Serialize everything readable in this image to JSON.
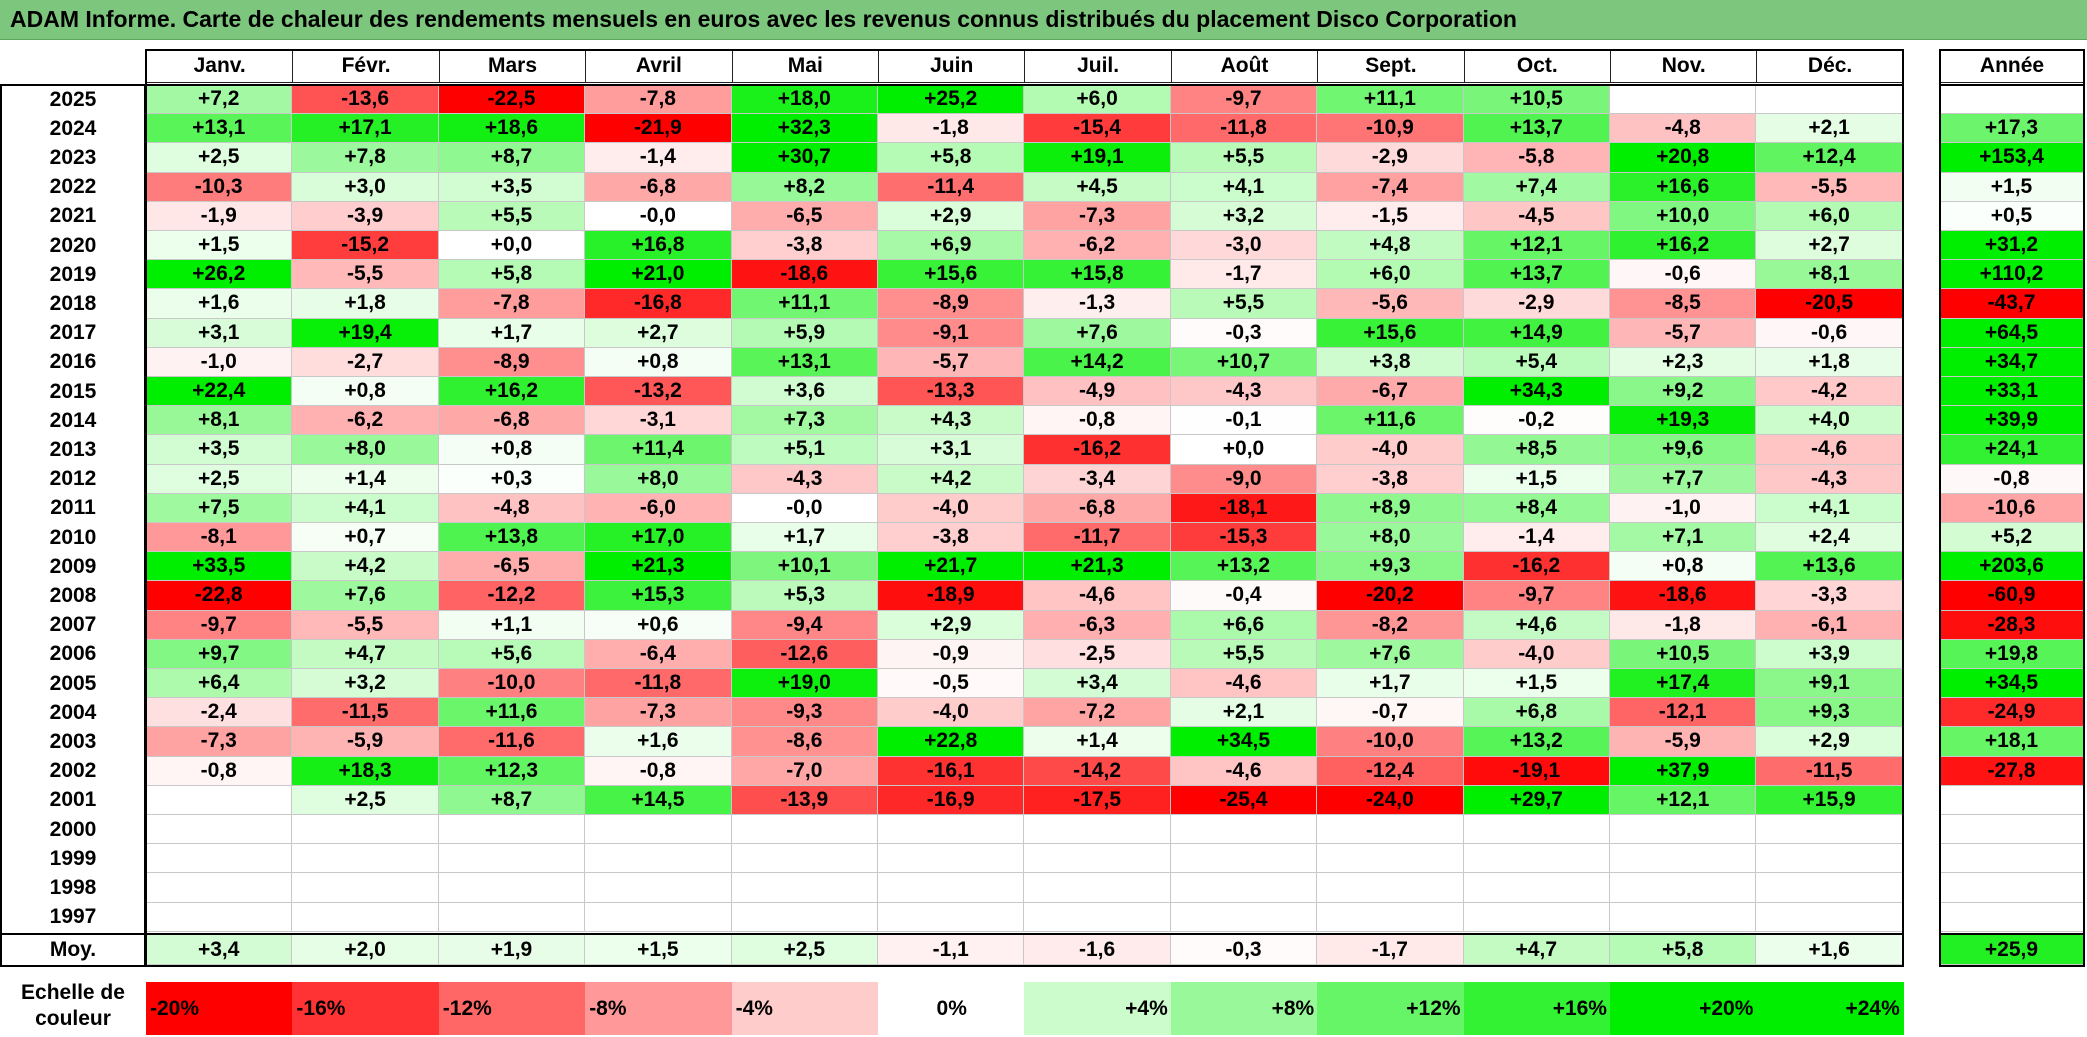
{
  "title": "ADAM Informe. Carte de chaleur des rendements mensuels en euros avec les revenus connus distribués du placement Disco Corporation",
  "colors": {
    "max_red": "#ff0000",
    "max_green": "#00ee00",
    "neutral": "#ffffff",
    "title_bg": "#7dc67d"
  },
  "chart_data": {
    "type": "heatmap",
    "title": "ADAM Informe. Carte de chaleur des rendements mensuels en euros avec les revenus connus distribués du placement Disco Corporation",
    "months": [
      "Janv.",
      "Févr.",
      "Mars",
      "Avril",
      "Mai",
      "Juin",
      "Juil.",
      "Août",
      "Sept.",
      "Oct.",
      "Nov.",
      "Déc."
    ],
    "year_header": "Année",
    "rows": [
      {
        "year": "2025",
        "values": [
          "+7,2",
          "-13,6",
          "-22,5",
          "-7,8",
          "+18,0",
          "+25,2",
          "+6,0",
          "-9,7",
          "+11,1",
          "+10,5",
          "",
          ""
        ],
        "annual": ""
      },
      {
        "year": "2024",
        "values": [
          "+13,1",
          "+17,1",
          "+18,6",
          "-21,9",
          "+32,3",
          "-1,8",
          "-15,4",
          "-11,8",
          "-10,9",
          "+13,7",
          "-4,8",
          "+2,1"
        ],
        "annual": "+17,3"
      },
      {
        "year": "2023",
        "values": [
          "+2,5",
          "+7,8",
          "+8,7",
          "-1,4",
          "+30,7",
          "+5,8",
          "+19,1",
          "+5,5",
          "-2,9",
          "-5,8",
          "+20,8",
          "+12,4"
        ],
        "annual": "+153,4"
      },
      {
        "year": "2022",
        "values": [
          "-10,3",
          "+3,0",
          "+3,5",
          "-6,8",
          "+8,2",
          "-11,4",
          "+4,5",
          "+4,1",
          "-7,4",
          "+7,4",
          "+16,6",
          "-5,5"
        ],
        "annual": "+1,5"
      },
      {
        "year": "2021",
        "values": [
          "-1,9",
          "-3,9",
          "+5,5",
          "-0,0",
          "-6,5",
          "+2,9",
          "-7,3",
          "+3,2",
          "-1,5",
          "-4,5",
          "+10,0",
          "+6,0"
        ],
        "annual": "+0,5"
      },
      {
        "year": "2020",
        "values": [
          "+1,5",
          "-15,2",
          "+0,0",
          "+16,8",
          "-3,8",
          "+6,9",
          "-6,2",
          "-3,0",
          "+4,8",
          "+12,1",
          "+16,2",
          "+2,7"
        ],
        "annual": "+31,2"
      },
      {
        "year": "2019",
        "values": [
          "+26,2",
          "-5,5",
          "+5,8",
          "+21,0",
          "-18,6",
          "+15,6",
          "+15,8",
          "-1,7",
          "+6,0",
          "+13,7",
          "-0,6",
          "+8,1"
        ],
        "annual": "+110,2"
      },
      {
        "year": "2018",
        "values": [
          "+1,6",
          "+1,8",
          "-7,8",
          "-16,8",
          "+11,1",
          "-8,9",
          "-1,3",
          "+5,5",
          "-5,6",
          "-2,9",
          "-8,5",
          "-20,5"
        ],
        "annual": "-43,7"
      },
      {
        "year": "2017",
        "values": [
          "+3,1",
          "+19,4",
          "+1,7",
          "+2,7",
          "+5,9",
          "-9,1",
          "+7,6",
          "-0,3",
          "+15,6",
          "+14,9",
          "-5,7",
          "-0,6"
        ],
        "annual": "+64,5"
      },
      {
        "year": "2016",
        "values": [
          "-1,0",
          "-2,7",
          "-8,9",
          "+0,8",
          "+13,1",
          "-5,7",
          "+14,2",
          "+10,7",
          "+3,8",
          "+5,4",
          "+2,3",
          "+1,8"
        ],
        "annual": "+34,7"
      },
      {
        "year": "2015",
        "values": [
          "+22,4",
          "+0,8",
          "+16,2",
          "-13,2",
          "+3,6",
          "-13,3",
          "-4,9",
          "-4,3",
          "-6,7",
          "+34,3",
          "+9,2",
          "-4,2"
        ],
        "annual": "+33,1"
      },
      {
        "year": "2014",
        "values": [
          "+8,1",
          "-6,2",
          "-6,8",
          "-3,1",
          "+7,3",
          "+4,3",
          "-0,8",
          "-0,1",
          "+11,6",
          "-0,2",
          "+19,3",
          "+4,0"
        ],
        "annual": "+39,9"
      },
      {
        "year": "2013",
        "values": [
          "+3,5",
          "+8,0",
          "+0,8",
          "+11,4",
          "+5,1",
          "+3,1",
          "-16,2",
          "+0,0",
          "-4,0",
          "+8,5",
          "+9,6",
          "-4,6"
        ],
        "annual": "+24,1"
      },
      {
        "year": "2012",
        "values": [
          "+2,5",
          "+1,4",
          "+0,3",
          "+8,0",
          "-4,3",
          "+4,2",
          "-3,4",
          "-9,0",
          "-3,8",
          "+1,5",
          "+7,7",
          "-4,3"
        ],
        "annual": "-0,8"
      },
      {
        "year": "2011",
        "values": [
          "+7,5",
          "+4,1",
          "-4,8",
          "-6,0",
          "-0,0",
          "-4,0",
          "-6,8",
          "-18,1",
          "+8,9",
          "+8,4",
          "-1,0",
          "+4,1"
        ],
        "annual": "-10,6"
      },
      {
        "year": "2010",
        "values": [
          "-8,1",
          "+0,7",
          "+13,8",
          "+17,0",
          "+1,7",
          "-3,8",
          "-11,7",
          "-15,3",
          "+8,0",
          "-1,4",
          "+7,1",
          "+2,4"
        ],
        "annual": "+5,2"
      },
      {
        "year": "2009",
        "values": [
          "+33,5",
          "+4,2",
          "-6,5",
          "+21,3",
          "+10,1",
          "+21,7",
          "+21,3",
          "+13,2",
          "+9,3",
          "-16,2",
          "+0,8",
          "+13,6"
        ],
        "annual": "+203,6"
      },
      {
        "year": "2008",
        "values": [
          "-22,8",
          "+7,6",
          "-12,2",
          "+15,3",
          "+5,3",
          "-18,9",
          "-4,6",
          "-0,4",
          "-20,2",
          "-9,7",
          "-18,6",
          "-3,3"
        ],
        "annual": "-60,9"
      },
      {
        "year": "2007",
        "values": [
          "-9,7",
          "-5,5",
          "+1,1",
          "+0,6",
          "-9,4",
          "+2,9",
          "-6,3",
          "+6,6",
          "-8,2",
          "+4,6",
          "-1,8",
          "-6,1"
        ],
        "annual": "-28,3"
      },
      {
        "year": "2006",
        "values": [
          "+9,7",
          "+4,7",
          "+5,6",
          "-6,4",
          "-12,6",
          "-0,9",
          "-2,5",
          "+5,5",
          "+7,6",
          "-4,0",
          "+10,5",
          "+3,9"
        ],
        "annual": "+19,8"
      },
      {
        "year": "2005",
        "values": [
          "+6,4",
          "+3,2",
          "-10,0",
          "-11,8",
          "+19,0",
          "-0,5",
          "+3,4",
          "-4,6",
          "+1,7",
          "+1,5",
          "+17,4",
          "+9,1"
        ],
        "annual": "+34,5"
      },
      {
        "year": "2004",
        "values": [
          "-2,4",
          "-11,5",
          "+11,6",
          "-7,3",
          "-9,3",
          "-4,0",
          "-7,2",
          "+2,1",
          "-0,7",
          "+6,8",
          "-12,1",
          "+9,3"
        ],
        "annual": "-24,9"
      },
      {
        "year": "2003",
        "values": [
          "-7,3",
          "-5,9",
          "-11,6",
          "+1,6",
          "-8,6",
          "+22,8",
          "+1,4",
          "+34,5",
          "-10,0",
          "+13,2",
          "-5,9",
          "+2,9"
        ],
        "annual": "+18,1"
      },
      {
        "year": "2002",
        "values": [
          "-0,8",
          "+18,3",
          "+12,3",
          "-0,8",
          "-7,0",
          "-16,1",
          "-14,2",
          "-4,6",
          "-12,4",
          "-19,1",
          "+37,9",
          "-11,5"
        ],
        "annual": "-27,8"
      },
      {
        "year": "2001",
        "values": [
          "",
          "+2,5",
          "+8,7",
          "+14,5",
          "-13,9",
          "-16,9",
          "-17,5",
          "-25,4",
          "-24,0",
          "+29,7",
          "+12,1",
          "+15,9"
        ],
        "annual": ""
      },
      {
        "year": "2000",
        "values": [
          "",
          "",
          "",
          "",
          "",
          "",
          "",
          "",
          "",
          "",
          "",
          ""
        ],
        "annual": ""
      },
      {
        "year": "1999",
        "values": [
          "",
          "",
          "",
          "",
          "",
          "",
          "",
          "",
          "",
          "",
          "",
          ""
        ],
        "annual": ""
      },
      {
        "year": "1998",
        "values": [
          "",
          "",
          "",
          "",
          "",
          "",
          "",
          "",
          "",
          "",
          "",
          ""
        ],
        "annual": ""
      },
      {
        "year": "1997",
        "values": [
          "",
          "",
          "",
          "",
          "",
          "",
          "",
          "",
          "",
          "",
          "",
          ""
        ],
        "annual": ""
      }
    ],
    "average": {
      "label": "Moy.",
      "values": [
        "+3,4",
        "+2,0",
        "+1,9",
        "+1,5",
        "+2,5",
        "-1,1",
        "-1,6",
        "-0,3",
        "-1,7",
        "+4,7",
        "+5,8",
        "+1,6"
      ],
      "annual": "+25,9"
    },
    "scale": {
      "label": "Echelle de couleur",
      "items": [
        "-20%",
        "-16%",
        "-12%",
        "-8%",
        "-4%",
        "0%",
        "+4%",
        "+8%",
        "+12%",
        "+16%",
        "+20%",
        "+24%"
      ]
    }
  }
}
